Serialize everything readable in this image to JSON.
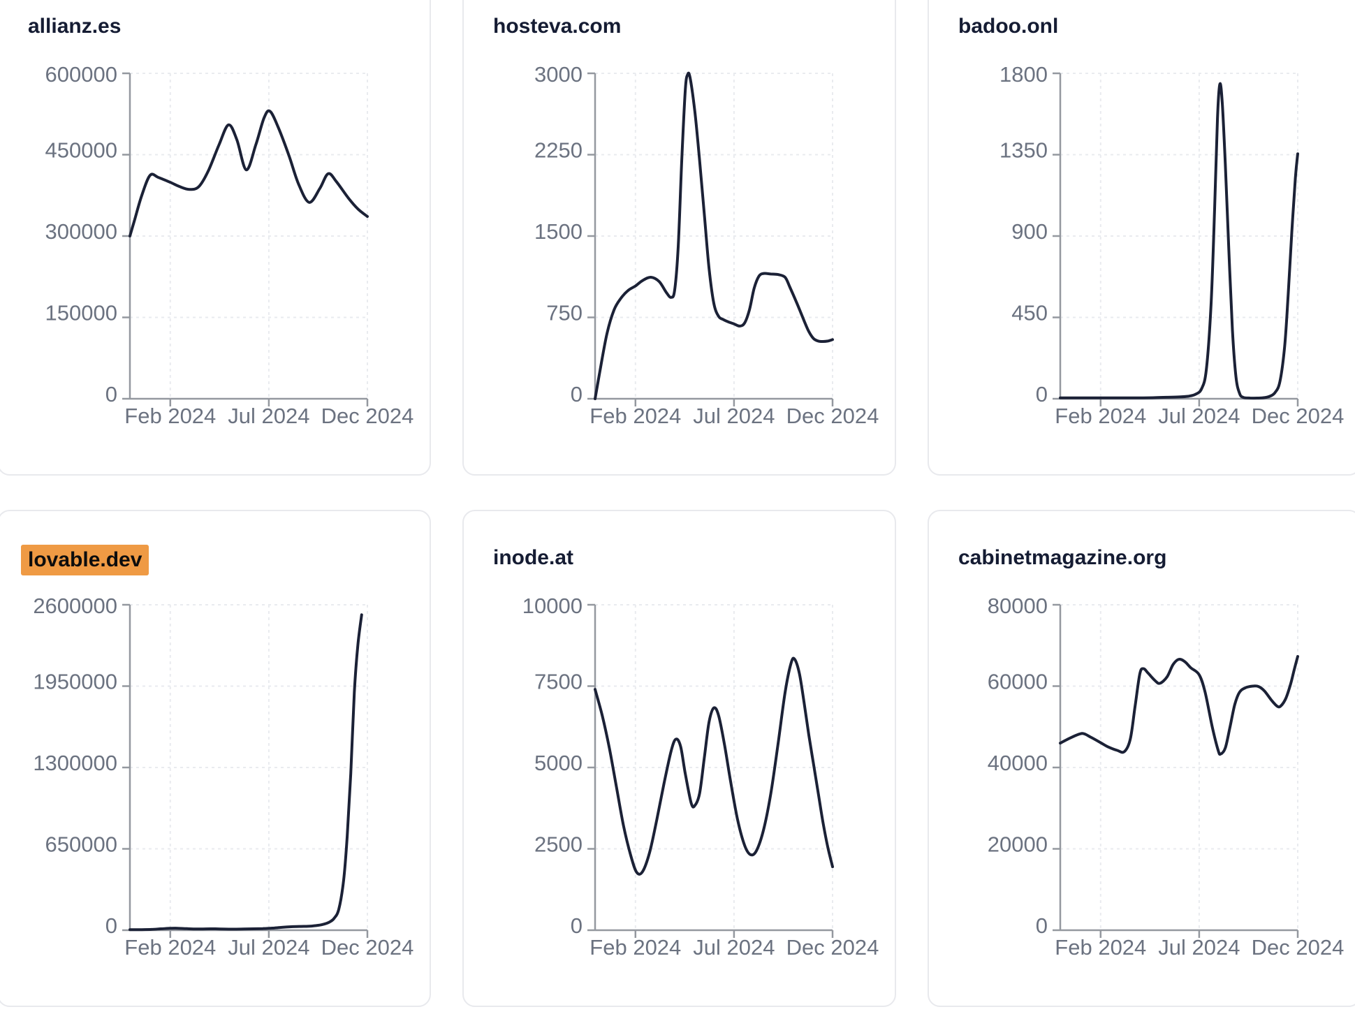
{
  "page": {
    "background": "#ffffff"
  },
  "colors": {
    "line": "#1b2136",
    "title": "#151c33",
    "tick_label": "#6b7280",
    "axis": "#94989f",
    "grid": "#e9ebef",
    "card_border": "#e8e9ed",
    "card_bg": "#ffffff",
    "highlight_bg": "#ef9a44",
    "highlight_text": "#0d0d0d"
  },
  "x_axis": {
    "tick_labels": [
      "Feb 2024",
      "Jul 2024",
      "Dec 2024"
    ],
    "tick_positions": [
      0.17,
      0.585,
      1.0
    ]
  },
  "chart_data": [
    {
      "type": "line",
      "title": "allianz.es",
      "highlighted": false,
      "ylim": [
        0,
        600000
      ],
      "y_tick_labels": [
        "0",
        "150000",
        "300000",
        "450000",
        "600000"
      ],
      "x_tick_labels": [
        "Feb 2024",
        "Jul 2024",
        "Dec 2024"
      ],
      "grid": true,
      "points": [
        [
          0,
          300000
        ],
        [
          0.02,
          330000
        ],
        [
          0.05,
          375000
        ],
        [
          0.085,
          412000
        ],
        [
          0.12,
          408000
        ],
        [
          0.17,
          399000
        ],
        [
          0.21,
          391000
        ],
        [
          0.25,
          386000
        ],
        [
          0.29,
          391000
        ],
        [
          0.33,
          420000
        ],
        [
          0.375,
          468000
        ],
        [
          0.415,
          505000
        ],
        [
          0.45,
          478000
        ],
        [
          0.49,
          422000
        ],
        [
          0.53,
          468000
        ],
        [
          0.565,
          518000
        ],
        [
          0.59,
          530000
        ],
        [
          0.625,
          500000
        ],
        [
          0.67,
          448000
        ],
        [
          0.71,
          396000
        ],
        [
          0.755,
          362000
        ],
        [
          0.8,
          388000
        ],
        [
          0.835,
          415000
        ],
        [
          0.87,
          400000
        ],
        [
          0.92,
          370000
        ],
        [
          0.96,
          350000
        ],
        [
          1,
          336000
        ]
      ]
    },
    {
      "type": "line",
      "title": "hosteva.com",
      "highlighted": false,
      "ylim": [
        0,
        3000
      ],
      "y_tick_labels": [
        "0",
        "750",
        "1500",
        "2250",
        "3000"
      ],
      "x_tick_labels": [
        "Feb 2024",
        "Jul 2024",
        "Dec 2024"
      ],
      "grid": true,
      "points": [
        [
          0,
          0
        ],
        [
          0.02,
          250
        ],
        [
          0.05,
          600
        ],
        [
          0.08,
          820
        ],
        [
          0.11,
          930
        ],
        [
          0.14,
          1000
        ],
        [
          0.17,
          1040
        ],
        [
          0.2,
          1090
        ],
        [
          0.235,
          1120
        ],
        [
          0.27,
          1080
        ],
        [
          0.3,
          980
        ],
        [
          0.32,
          935
        ],
        [
          0.335,
          1000
        ],
        [
          0.35,
          1400
        ],
        [
          0.365,
          2200
        ],
        [
          0.38,
          2850
        ],
        [
          0.39,
          2990
        ],
        [
          0.4,
          2960
        ],
        [
          0.42,
          2650
        ],
        [
          0.44,
          2200
        ],
        [
          0.46,
          1700
        ],
        [
          0.48,
          1200
        ],
        [
          0.5,
          880
        ],
        [
          0.52,
          760
        ],
        [
          0.54,
          730
        ],
        [
          0.56,
          710
        ],
        [
          0.585,
          690
        ],
        [
          0.61,
          670
        ],
        [
          0.63,
          700
        ],
        [
          0.65,
          820
        ],
        [
          0.67,
          1020
        ],
        [
          0.69,
          1130
        ],
        [
          0.71,
          1155
        ],
        [
          0.74,
          1150
        ],
        [
          0.77,
          1145
        ],
        [
          0.8,
          1120
        ],
        [
          0.82,
          1030
        ],
        [
          0.85,
          880
        ],
        [
          0.88,
          720
        ],
        [
          0.9,
          620
        ],
        [
          0.92,
          555
        ],
        [
          0.94,
          532
        ],
        [
          0.96,
          528
        ],
        [
          0.98,
          532
        ],
        [
          1,
          545
        ]
      ]
    },
    {
      "type": "line",
      "title": "badoo.onl",
      "highlighted": false,
      "ylim": [
        0,
        1800
      ],
      "y_tick_labels": [
        "0",
        "450",
        "900",
        "1350",
        "1800"
      ],
      "x_tick_labels": [
        "Feb 2024",
        "Jul 2024",
        "Dec 2024"
      ],
      "grid": true,
      "points": [
        [
          0,
          5
        ],
        [
          0.05,
          5
        ],
        [
          0.1,
          5
        ],
        [
          0.15,
          5
        ],
        [
          0.2,
          5
        ],
        [
          0.25,
          5
        ],
        [
          0.3,
          5
        ],
        [
          0.35,
          5
        ],
        [
          0.4,
          6
        ],
        [
          0.45,
          8
        ],
        [
          0.5,
          10
        ],
        [
          0.54,
          14
        ],
        [
          0.57,
          25
        ],
        [
          0.595,
          55
        ],
        [
          0.615,
          160
        ],
        [
          0.635,
          520
        ],
        [
          0.65,
          1050
        ],
        [
          0.662,
          1550
        ],
        [
          0.672,
          1740
        ],
        [
          0.682,
          1640
        ],
        [
          0.695,
          1300
        ],
        [
          0.71,
          820
        ],
        [
          0.725,
          380
        ],
        [
          0.74,
          120
        ],
        [
          0.755,
          30
        ],
        [
          0.77,
          8
        ],
        [
          0.8,
          4
        ],
        [
          0.83,
          4
        ],
        [
          0.86,
          6
        ],
        [
          0.885,
          15
        ],
        [
          0.905,
          35
        ],
        [
          0.925,
          95
        ],
        [
          0.945,
          290
        ],
        [
          0.96,
          580
        ],
        [
          0.975,
          920
        ],
        [
          0.99,
          1220
        ],
        [
          1,
          1355
        ]
      ]
    },
    {
      "type": "line",
      "title": "lovable.dev",
      "highlighted": true,
      "ylim": [
        0,
        2600000
      ],
      "y_tick_labels": [
        "0",
        "650000",
        "1300000",
        "1950000",
        "2600000"
      ],
      "x_tick_labels": [
        "Feb 2024",
        "Jul 2024",
        "Dec 2024"
      ],
      "grid": true,
      "points": [
        [
          0,
          4000
        ],
        [
          0.05,
          4500
        ],
        [
          0.09,
          6000
        ],
        [
          0.13,
          11000
        ],
        [
          0.17,
          15000
        ],
        [
          0.2,
          15500
        ],
        [
          0.24,
          12000
        ],
        [
          0.28,
          9500
        ],
        [
          0.32,
          10500
        ],
        [
          0.36,
          11000
        ],
        [
          0.4,
          9000
        ],
        [
          0.44,
          8500
        ],
        [
          0.48,
          9500
        ],
        [
          0.52,
          11000
        ],
        [
          0.56,
          13000
        ],
        [
          0.6,
          17000
        ],
        [
          0.64,
          23000
        ],
        [
          0.68,
          28000
        ],
        [
          0.72,
          30000
        ],
        [
          0.75,
          31000
        ],
        [
          0.78,
          36000
        ],
        [
          0.81,
          45000
        ],
        [
          0.84,
          65000
        ],
        [
          0.86,
          95000
        ],
        [
          0.88,
          170000
        ],
        [
          0.9,
          400000
        ],
        [
          0.915,
          750000
        ],
        [
          0.93,
          1250000
        ],
        [
          0.945,
          1900000
        ],
        [
          0.96,
          2280000
        ],
        [
          0.976,
          2520000
        ]
      ]
    },
    {
      "type": "line",
      "title": "inode.at",
      "highlighted": false,
      "ylim": [
        0,
        10000
      ],
      "y_tick_labels": [
        "0",
        "2500",
        "5000",
        "7500",
        "10000"
      ],
      "x_tick_labels": [
        "Feb 2024",
        "Jul 2024",
        "Dec 2024"
      ],
      "grid": true,
      "points": [
        [
          0,
          7400
        ],
        [
          0.03,
          6600
        ],
        [
          0.06,
          5600
        ],
        [
          0.09,
          4400
        ],
        [
          0.12,
          3200
        ],
        [
          0.15,
          2300
        ],
        [
          0.175,
          1780
        ],
        [
          0.2,
          1800
        ],
        [
          0.23,
          2400
        ],
        [
          0.26,
          3400
        ],
        [
          0.29,
          4500
        ],
        [
          0.32,
          5500
        ],
        [
          0.34,
          5870
        ],
        [
          0.36,
          5650
        ],
        [
          0.38,
          4800
        ],
        [
          0.405,
          3900
        ],
        [
          0.42,
          3830
        ],
        [
          0.44,
          4200
        ],
        [
          0.46,
          5300
        ],
        [
          0.48,
          6400
        ],
        [
          0.5,
          6830
        ],
        [
          0.52,
          6600
        ],
        [
          0.545,
          5700
        ],
        [
          0.57,
          4600
        ],
        [
          0.6,
          3400
        ],
        [
          0.63,
          2600
        ],
        [
          0.655,
          2320
        ],
        [
          0.68,
          2450
        ],
        [
          0.71,
          3100
        ],
        [
          0.74,
          4200
        ],
        [
          0.77,
          5700
        ],
        [
          0.8,
          7300
        ],
        [
          0.825,
          8200
        ],
        [
          0.84,
          8330
        ],
        [
          0.86,
          7900
        ],
        [
          0.88,
          7000
        ],
        [
          0.9,
          6000
        ],
        [
          0.92,
          5100
        ],
        [
          0.94,
          4200
        ],
        [
          0.96,
          3300
        ],
        [
          0.98,
          2550
        ],
        [
          1,
          1950
        ]
      ]
    },
    {
      "type": "line",
      "title": "cabinetmagazine.org",
      "highlighted": false,
      "ylim": [
        0,
        80000
      ],
      "y_tick_labels": [
        "0",
        "20000",
        "40000",
        "60000",
        "80000"
      ],
      "x_tick_labels": [
        "Feb 2024",
        "Jul 2024",
        "Dec 2024"
      ],
      "grid": true,
      "points": [
        [
          0,
          46000
        ],
        [
          0.04,
          47200
        ],
        [
          0.08,
          48200
        ],
        [
          0.1,
          48300
        ],
        [
          0.13,
          47400
        ],
        [
          0.17,
          46100
        ],
        [
          0.2,
          45100
        ],
        [
          0.24,
          44200
        ],
        [
          0.27,
          43900
        ],
        [
          0.295,
          47000
        ],
        [
          0.315,
          55000
        ],
        [
          0.335,
          63000
        ],
        [
          0.35,
          64300
        ],
        [
          0.37,
          63200
        ],
        [
          0.4,
          61300
        ],
        [
          0.42,
          60700
        ],
        [
          0.45,
          62300
        ],
        [
          0.475,
          65300
        ],
        [
          0.5,
          66600
        ],
        [
          0.525,
          66000
        ],
        [
          0.55,
          64500
        ],
        [
          0.585,
          62800
        ],
        [
          0.61,
          58500
        ],
        [
          0.64,
          50000
        ],
        [
          0.665,
          44200
        ],
        [
          0.675,
          43300
        ],
        [
          0.695,
          44800
        ],
        [
          0.715,
          50000
        ],
        [
          0.735,
          55500
        ],
        [
          0.755,
          58500
        ],
        [
          0.78,
          59600
        ],
        [
          0.81,
          60000
        ],
        [
          0.835,
          59900
        ],
        [
          0.86,
          58800
        ],
        [
          0.89,
          56500
        ],
        [
          0.915,
          55000
        ],
        [
          0.93,
          55200
        ],
        [
          0.95,
          57000
        ],
        [
          0.97,
          60500
        ],
        [
          0.985,
          64000
        ],
        [
          1,
          67300
        ]
      ]
    }
  ]
}
